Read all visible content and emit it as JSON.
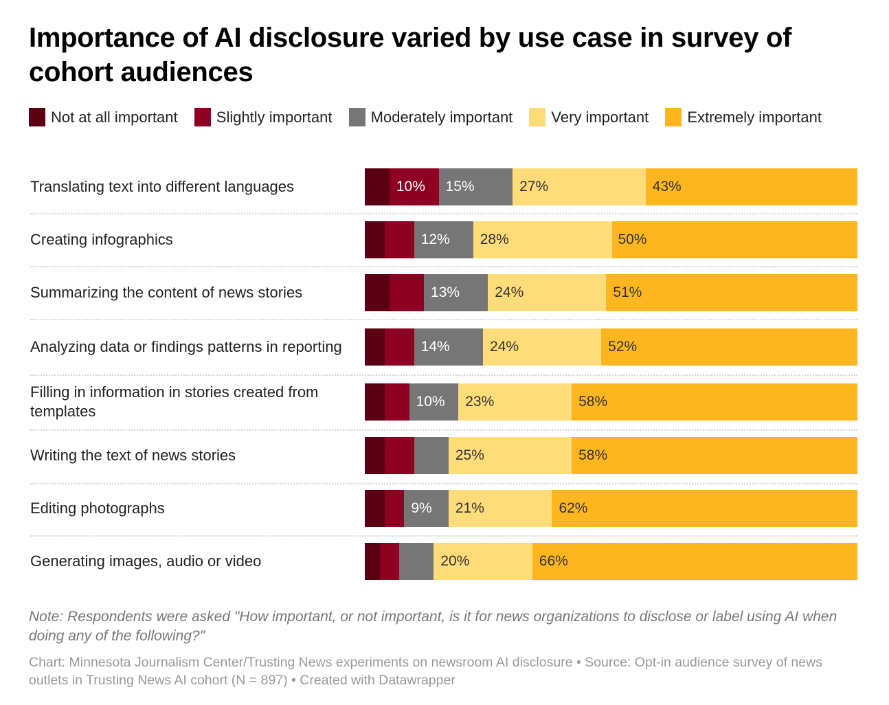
{
  "title": "Importance of AI disclosure varied by use case in survey of cohort audiences",
  "legend": [
    {
      "label": "Not at all important",
      "color": "#5b0013"
    },
    {
      "label": "Slightly important",
      "color": "#8d0022"
    },
    {
      "label": "Moderately important",
      "color": "#767676"
    },
    {
      "label": "Very important",
      "color": "#ffdc7a"
    },
    {
      "label": "Extremely important",
      "color": "#fdb620"
    }
  ],
  "chart_data": {
    "type": "bar",
    "orientation": "horizontal",
    "stacked": true,
    "title": "Importance of AI disclosure varied by use case in survey of cohort audiences",
    "xlabel": "",
    "ylabel": "",
    "xlim": [
      0,
      100
    ],
    "unit": "%",
    "legend_position": "top",
    "categories": [
      "Translating text into different languages",
      "Creating infographics",
      "Summarizing the content of news stories",
      "Analyzing data or findings patterns in reporting",
      "Filling in information in stories created from templates",
      "Writing the text of news stories",
      "Editing photographs",
      "Generating images, audio or video"
    ],
    "series": [
      {
        "name": "Not at all important",
        "color": "#5b0013",
        "label_color": "#ffffff",
        "values": [
          5,
          4,
          5,
          4,
          4,
          4,
          4,
          3
        ],
        "labels_shown": [
          false,
          false,
          false,
          false,
          false,
          false,
          false,
          false
        ]
      },
      {
        "name": "Slightly important",
        "color": "#8d0022",
        "label_color": "#ffffff",
        "values": [
          10,
          6,
          7,
          6,
          5,
          6,
          4,
          4
        ],
        "labels_shown": [
          true,
          false,
          false,
          false,
          false,
          false,
          false,
          false
        ]
      },
      {
        "name": "Moderately important",
        "color": "#767676",
        "label_color": "#ffffff",
        "values": [
          15,
          12,
          13,
          14,
          10,
          7,
          9,
          7
        ],
        "labels_shown": [
          true,
          true,
          true,
          true,
          true,
          false,
          true,
          false
        ]
      },
      {
        "name": "Very important",
        "color": "#ffdc7a",
        "label_color": "#333333",
        "values": [
          27,
          28,
          24,
          24,
          23,
          25,
          21,
          20
        ],
        "labels_shown": [
          true,
          true,
          true,
          true,
          true,
          true,
          true,
          true
        ]
      },
      {
        "name": "Extremely important",
        "color": "#fdb620",
        "label_color": "#333333",
        "values": [
          43,
          50,
          51,
          52,
          58,
          58,
          62,
          66
        ],
        "labels_shown": [
          true,
          true,
          true,
          true,
          true,
          true,
          true,
          true
        ]
      }
    ]
  },
  "note": "Note: Respondents were asked \"How important, or not important, is it for news organizations to disclose or label using AI when doing any of the following?\"",
  "credit": "Chart: Minnesota Journalism Center/Trusting News experiments on newsroom AI disclosure • Source: Opt-in audience survey of news outlets in Trusting News AI cohort (N = 897) • Created with Datawrapper"
}
